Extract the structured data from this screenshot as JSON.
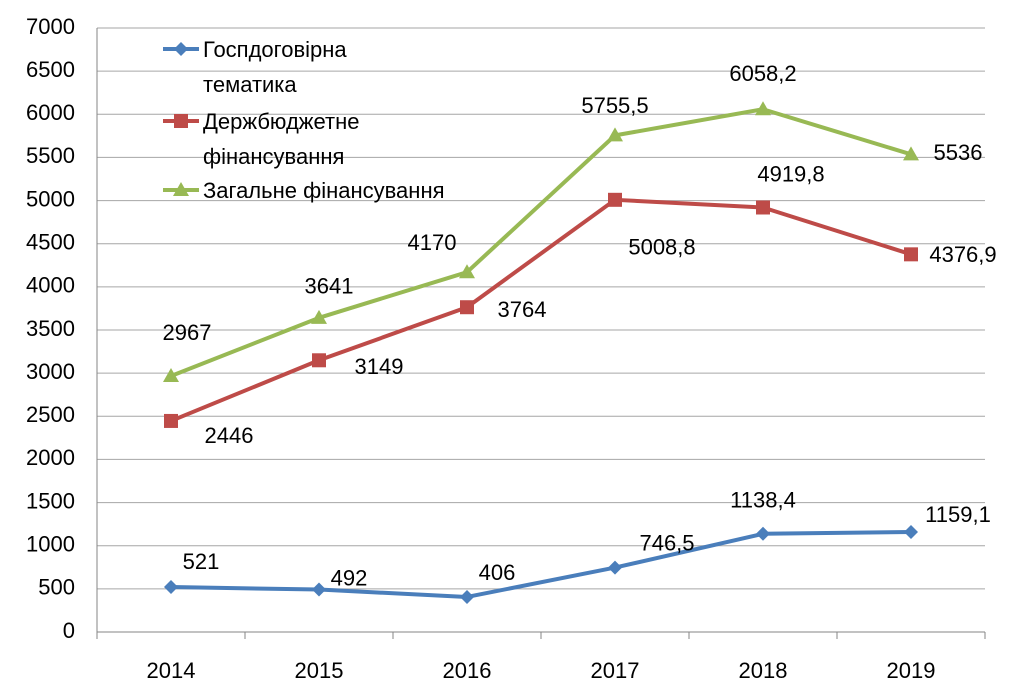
{
  "chart_data": {
    "type": "line",
    "categories": [
      "2014",
      "2015",
      "2016",
      "2017",
      "2018",
      "2019"
    ],
    "series": [
      {
        "name": "Госпдоговірна тематика",
        "color": "#4a7ebb",
        "marker": "diamond",
        "values": [
          521,
          492,
          406,
          746.5,
          1138.4,
          1159.1
        ],
        "value_labels": [
          "521",
          "492",
          "406",
          "746,5",
          "1138,4",
          "1159,1"
        ]
      },
      {
        "name": "Держбюджетне фінансування",
        "color": "#be4b48",
        "marker": "square",
        "values": [
          2446,
          3149,
          3764,
          5008.8,
          4919.8,
          4376.9
        ],
        "value_labels": [
          "2446",
          "3149",
          "3764",
          "5008,8",
          "4919,8",
          "4376,9"
        ]
      },
      {
        "name": "Загальне фінансування",
        "color": "#98b954",
        "marker": "triangle",
        "values": [
          2967,
          3641,
          4170,
          5755.5,
          6058.2,
          5536
        ],
        "value_labels": [
          "2967",
          "3641",
          "4170",
          "5755,5",
          "6058,2",
          "5536"
        ]
      }
    ],
    "ylim": [
      0,
      7000
    ],
    "yticks": [
      0,
      500,
      1000,
      1500,
      2000,
      2500,
      3000,
      3500,
      4000,
      4500,
      5000,
      5500,
      6000,
      6500,
      7000
    ],
    "grid": true,
    "legend": "top-left"
  }
}
